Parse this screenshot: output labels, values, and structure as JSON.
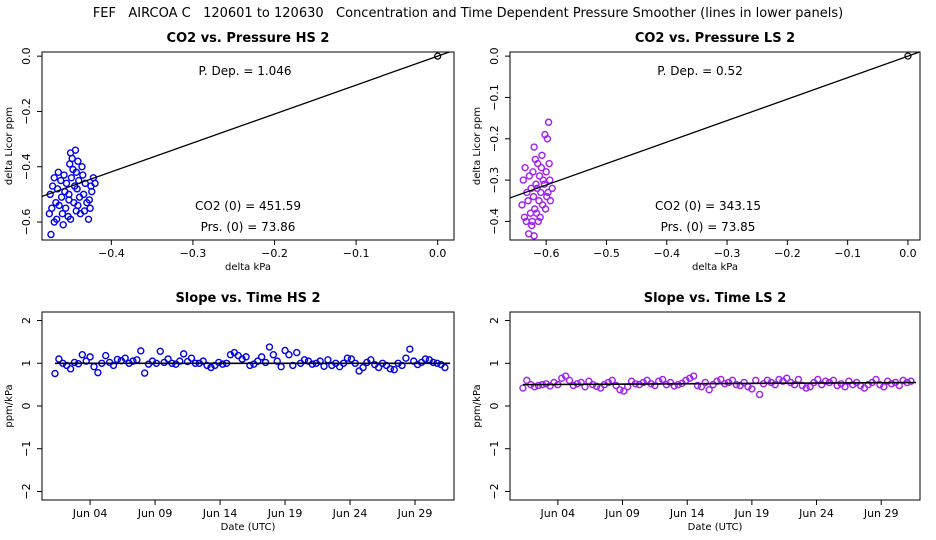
{
  "suptitle": "FEF   AIRCOA C   120601 to 120630   Concentration and Time Dependent Pressure Smoother (lines in lower panels)",
  "colors": {
    "hs": "#0000ee",
    "ls": "#a020f0",
    "line": "#000000"
  },
  "chart_data": [
    {
      "id": "p1",
      "type": "scatter",
      "title": "CO2 vs. Pressure HS 2",
      "xlabel": "delta kPa",
      "ylabel": "delta Licor ppm",
      "xlim": [
        -0.485,
        0.02
      ],
      "ylim": [
        -0.665,
        0.015
      ],
      "xticks": [
        -0.4,
        -0.3,
        -0.2,
        -0.1,
        0.0
      ],
      "xtick_labels": [
        "−0.4",
        "−0.3",
        "−0.2",
        "−0.1",
        "0.0"
      ],
      "yticks": [
        0.0,
        -0.2,
        -0.4,
        -0.6
      ],
      "ytick_labels": [
        "0.0",
        "−0.2",
        "−0.4",
        "−0.6"
      ],
      "annotations": {
        "pdep": "P. Dep. =  1.046",
        "co2_0": "CO2 (0) =  451.59",
        "prs_0": "Prs. (0) =  73.86"
      },
      "fit_line": {
        "x": [
          -0.485,
          0.02
        ],
        "y": [
          -0.5073,
          0.0209
        ]
      },
      "anchor_point": {
        "x": 0.0,
        "y": 0.0
      },
      "points": [
        [
          -0.47,
          -0.44
        ],
        [
          -0.472,
          -0.47
        ],
        [
          -0.475,
          -0.5
        ],
        [
          -0.468,
          -0.53
        ],
        [
          -0.473,
          -0.55
        ],
        [
          -0.476,
          -0.57
        ],
        [
          -0.47,
          -0.6
        ],
        [
          -0.474,
          -0.645
        ],
        [
          -0.465,
          -0.42
        ],
        [
          -0.462,
          -0.45
        ],
        [
          -0.466,
          -0.48
        ],
        [
          -0.461,
          -0.51
        ],
        [
          -0.464,
          -0.54
        ],
        [
          -0.46,
          -0.57
        ],
        [
          -0.467,
          -0.59
        ],
        [
          -0.458,
          -0.43
        ],
        [
          -0.455,
          -0.46
        ],
        [
          -0.457,
          -0.49
        ],
        [
          -0.452,
          -0.52
        ],
        [
          -0.456,
          -0.55
        ],
        [
          -0.453,
          -0.58
        ],
        [
          -0.459,
          -0.61
        ],
        [
          -0.45,
          -0.35
        ],
        [
          -0.448,
          -0.37
        ],
        [
          -0.451,
          -0.39
        ],
        [
          -0.447,
          -0.41
        ],
        [
          -0.449,
          -0.44
        ],
        [
          -0.445,
          -0.47
        ],
        [
          -0.452,
          -0.5
        ],
        [
          -0.446,
          -0.53
        ],
        [
          -0.443,
          -0.56
        ],
        [
          -0.45,
          -0.59
        ],
        [
          -0.444,
          -0.34
        ],
        [
          -0.441,
          -0.38
        ],
        [
          -0.443,
          -0.42
        ],
        [
          -0.44,
          -0.45
        ],
        [
          -0.442,
          -0.48
        ],
        [
          -0.439,
          -0.51
        ],
        [
          -0.441,
          -0.54
        ],
        [
          -0.438,
          -0.57
        ],
        [
          -0.435,
          -0.43
        ],
        [
          -0.432,
          -0.46
        ],
        [
          -0.434,
          -0.5
        ],
        [
          -0.43,
          -0.53
        ],
        [
          -0.433,
          -0.56
        ],
        [
          -0.428,
          -0.59
        ],
        [
          -0.436,
          -0.4
        ],
        [
          -0.425,
          -0.47
        ],
        [
          -0.422,
          -0.44
        ],
        [
          -0.427,
          -0.52
        ],
        [
          -0.424,
          -0.49
        ],
        [
          -0.42,
          -0.46
        ],
        [
          -0.426,
          -0.55
        ]
      ]
    },
    {
      "id": "p2",
      "type": "scatter",
      "title": "CO2 vs. Pressure LS 2",
      "xlabel": "delta kPa",
      "ylabel": "delta Licor ppm",
      "xlim": [
        -0.66,
        0.02
      ],
      "ylim": [
        -0.445,
        0.01
      ],
      "xticks": [
        -0.6,
        -0.5,
        -0.4,
        -0.3,
        -0.2,
        -0.1,
        0.0
      ],
      "xtick_labels": [
        "−0.6",
        "−0.5",
        "−0.4",
        "−0.3",
        "−0.2",
        "−0.1",
        "0.0"
      ],
      "yticks": [
        0.0,
        -0.1,
        -0.2,
        -0.3,
        -0.4
      ],
      "ytick_labels": [
        "0.0",
        "−0.1",
        "−0.2",
        "−0.3",
        "−0.4"
      ],
      "annotations": {
        "pdep": "P. Dep. =  0.52",
        "co2_0": "CO2 (0) =  343.15",
        "prs_0": "Prs. (0) =  73.85"
      },
      "fit_line": {
        "x": [
          -0.66,
          0.02
        ],
        "y": [
          -0.3432,
          0.0104
        ]
      },
      "anchor_point": {
        "x": 0.0,
        "y": 0.0
      },
      "points": [
        [
          -0.635,
          -0.27
        ],
        [
          -0.638,
          -0.3
        ],
        [
          -0.632,
          -0.33
        ],
        [
          -0.64,
          -0.36
        ],
        [
          -0.636,
          -0.39
        ],
        [
          -0.633,
          -0.4
        ],
        [
          -0.628,
          -0.29
        ],
        [
          -0.625,
          -0.32
        ],
        [
          -0.63,
          -0.35
        ],
        [
          -0.626,
          -0.38
        ],
        [
          -0.629,
          -0.43
        ],
        [
          -0.624,
          -0.41
        ],
        [
          -0.62,
          -0.22
        ],
        [
          -0.618,
          -0.25
        ],
        [
          -0.622,
          -0.28
        ],
        [
          -0.617,
          -0.31
        ],
        [
          -0.621,
          -0.34
        ],
        [
          -0.619,
          -0.37
        ],
        [
          -0.623,
          -0.4
        ],
        [
          -0.62,
          -0.435
        ],
        [
          -0.614,
          -0.26
        ],
        [
          -0.611,
          -0.29
        ],
        [
          -0.615,
          -0.32
        ],
        [
          -0.612,
          -0.35
        ],
        [
          -0.616,
          -0.38
        ],
        [
          -0.613,
          -0.4
        ],
        [
          -0.608,
          -0.27
        ],
        [
          -0.605,
          -0.3
        ],
        [
          -0.609,
          -0.33
        ],
        [
          -0.606,
          -0.36
        ],
        [
          -0.61,
          -0.39
        ],
        [
          -0.607,
          -0.24
        ],
        [
          -0.602,
          -0.19
        ],
        [
          -0.6,
          -0.28
        ],
        [
          -0.603,
          -0.31
        ],
        [
          -0.599,
          -0.34
        ],
        [
          -0.601,
          -0.37
        ],
        [
          -0.598,
          -0.2
        ],
        [
          -0.596,
          -0.16
        ],
        [
          -0.594,
          -0.3
        ],
        [
          -0.597,
          -0.33
        ],
        [
          -0.593,
          -0.35
        ],
        [
          -0.595,
          -0.26
        ],
        [
          -0.59,
          -0.32
        ]
      ]
    },
    {
      "id": "p3",
      "type": "scatter",
      "title": "Slope vs. Time HS 2",
      "xlabel": "Date (UTC)",
      "ylabel": "ppm/kPa",
      "xlim": [
        -0.7,
        31.0
      ],
      "ylim": [
        -2.2,
        2.2
      ],
      "xticks": [
        3,
        8,
        13,
        18,
        23,
        28
      ],
      "xtick_labels": [
        "Jun 04",
        "Jun 09",
        "Jun 14",
        "Jun 19",
        "Jun 24",
        "Jun 29"
      ],
      "yticks": [
        2,
        1,
        0,
        -1,
        -2
      ],
      "ytick_labels": [
        "2",
        "1",
        "0",
        "−1",
        "−2"
      ],
      "smoother": {
        "x": [
          0.3,
          30.7
        ],
        "y": [
          1.0,
          1.0
        ]
      },
      "points": [
        [
          0.3,
          0.76
        ],
        [
          0.6,
          1.1
        ],
        [
          0.9,
          1.0
        ],
        [
          1.2,
          0.95
        ],
        [
          1.5,
          0.87
        ],
        [
          1.8,
          1.02
        ],
        [
          2.1,
          0.99
        ],
        [
          2.4,
          1.2
        ],
        [
          2.7,
          1.05
        ],
        [
          3.0,
          1.15
        ],
        [
          3.3,
          0.92
        ],
        [
          3.6,
          0.78
        ],
        [
          3.9,
          1.0
        ],
        [
          4.2,
          1.18
        ],
        [
          4.5,
          1.02
        ],
        [
          4.8,
          0.95
        ],
        [
          5.1,
          1.09
        ],
        [
          5.4,
          1.06
        ],
        [
          5.7,
          1.12
        ],
        [
          6.0,
          1.0
        ],
        [
          6.3,
          1.05
        ],
        [
          6.6,
          1.08
        ],
        [
          6.9,
          1.29
        ],
        [
          7.2,
          0.77
        ],
        [
          7.5,
          0.98
        ],
        [
          7.8,
          1.05
        ],
        [
          8.1,
          1.0
        ],
        [
          8.4,
          1.28
        ],
        [
          8.7,
          1.02
        ],
        [
          9.0,
          1.1
        ],
        [
          9.3,
          1.0
        ],
        [
          9.6,
          0.98
        ],
        [
          9.9,
          1.05
        ],
        [
          10.2,
          1.22
        ],
        [
          10.5,
          1.04
        ],
        [
          10.8,
          1.12
        ],
        [
          11.1,
          1.0
        ],
        [
          11.4,
          1.0
        ],
        [
          11.7,
          1.05
        ],
        [
          12.0,
          0.95
        ],
        [
          12.3,
          0.9
        ],
        [
          12.6,
          0.95
        ],
        [
          12.9,
          1.02
        ],
        [
          13.2,
          0.98
        ],
        [
          13.5,
          1.0
        ],
        [
          13.8,
          1.2
        ],
        [
          14.1,
          1.25
        ],
        [
          14.4,
          1.18
        ],
        [
          14.7,
          1.1
        ],
        [
          15.0,
          1.15
        ],
        [
          15.3,
          0.95
        ],
        [
          15.6,
          0.98
        ],
        [
          15.9,
          1.05
        ],
        [
          16.2,
          1.15
        ],
        [
          16.5,
          1.02
        ],
        [
          16.8,
          1.38
        ],
        [
          17.1,
          1.2
        ],
        [
          17.4,
          1.05
        ],
        [
          17.7,
          0.92
        ],
        [
          18.0,
          1.3
        ],
        [
          18.3,
          1.2
        ],
        [
          18.6,
          0.95
        ],
        [
          18.9,
          1.25
        ],
        [
          19.2,
          1.0
        ],
        [
          19.5,
          1.08
        ],
        [
          19.8,
          1.05
        ],
        [
          20.1,
          0.98
        ],
        [
          20.4,
          1.0
        ],
        [
          20.7,
          1.05
        ],
        [
          21.0,
          0.93
        ],
        [
          21.3,
          1.08
        ],
        [
          21.6,
          0.95
        ],
        [
          21.9,
          1.0
        ],
        [
          22.2,
          0.92
        ],
        [
          22.5,
          1.0
        ],
        [
          22.8,
          1.12
        ],
        [
          23.1,
          1.1
        ],
        [
          23.4,
          1.0
        ],
        [
          23.7,
          0.82
        ],
        [
          24.0,
          0.9
        ],
        [
          24.3,
          1.02
        ],
        [
          24.6,
          1.08
        ],
        [
          24.9,
          0.97
        ],
        [
          25.2,
          0.9
        ],
        [
          25.5,
          1.0
        ],
        [
          25.8,
          0.95
        ],
        [
          26.1,
          0.87
        ],
        [
          26.4,
          0.85
        ],
        [
          26.7,
          1.0
        ],
        [
          27.0,
          0.95
        ],
        [
          27.3,
          1.12
        ],
        [
          27.6,
          1.33
        ],
        [
          27.9,
          1.05
        ],
        [
          28.2,
          0.97
        ],
        [
          28.5,
          1.02
        ],
        [
          28.8,
          1.1
        ],
        [
          29.1,
          1.08
        ],
        [
          29.4,
          1.02
        ],
        [
          29.7,
          1.0
        ],
        [
          30.0,
          0.97
        ],
        [
          30.3,
          0.9
        ]
      ]
    },
    {
      "id": "p4",
      "type": "scatter",
      "title": "Slope vs. Time LS 2",
      "xlabel": "Date (UTC)",
      "ylabel": "ppm/kPa",
      "xlim": [
        -0.7,
        31.0
      ],
      "ylim": [
        -2.2,
        2.2
      ],
      "xticks": [
        3,
        8,
        13,
        18,
        23,
        28
      ],
      "xtick_labels": [
        "Jun 04",
        "Jun 09",
        "Jun 14",
        "Jun 19",
        "Jun 24",
        "Jun 29"
      ],
      "yticks": [
        2,
        1,
        0,
        -1,
        -2
      ],
      "ytick_labels": [
        "2",
        "1",
        "0",
        "−1",
        "−2"
      ],
      "smoother": {
        "x": [
          0.3,
          30.7
        ],
        "y": [
          0.5,
          0.55
        ]
      },
      "points": [
        [
          0.3,
          0.42
        ],
        [
          0.6,
          0.6
        ],
        [
          0.9,
          0.5
        ],
        [
          1.2,
          0.45
        ],
        [
          1.5,
          0.48
        ],
        [
          1.8,
          0.5
        ],
        [
          2.1,
          0.52
        ],
        [
          2.4,
          0.47
        ],
        [
          2.7,
          0.55
        ],
        [
          3.0,
          0.5
        ],
        [
          3.3,
          0.65
        ],
        [
          3.6,
          0.7
        ],
        [
          3.9,
          0.6
        ],
        [
          4.2,
          0.48
        ],
        [
          4.5,
          0.52
        ],
        [
          4.8,
          0.55
        ],
        [
          5.1,
          0.45
        ],
        [
          5.4,
          0.58
        ],
        [
          5.7,
          0.5
        ],
        [
          6.0,
          0.46
        ],
        [
          6.3,
          0.42
        ],
        [
          6.6,
          0.5
        ],
        [
          6.9,
          0.55
        ],
        [
          7.2,
          0.6
        ],
        [
          7.5,
          0.48
        ],
        [
          7.8,
          0.38
        ],
        [
          8.1,
          0.35
        ],
        [
          8.4,
          0.45
        ],
        [
          8.7,
          0.58
        ],
        [
          9.0,
          0.52
        ],
        [
          9.3,
          0.5
        ],
        [
          9.6,
          0.55
        ],
        [
          9.9,
          0.6
        ],
        [
          10.2,
          0.52
        ],
        [
          10.5,
          0.48
        ],
        [
          10.8,
          0.58
        ],
        [
          11.1,
          0.62
        ],
        [
          11.4,
          0.5
        ],
        [
          11.7,
          0.55
        ],
        [
          12.0,
          0.47
        ],
        [
          12.3,
          0.5
        ],
        [
          12.6,
          0.53
        ],
        [
          12.9,
          0.6
        ],
        [
          13.2,
          0.65
        ],
        [
          13.5,
          0.7
        ],
        [
          13.8,
          0.48
        ],
        [
          14.1,
          0.45
        ],
        [
          14.4,
          0.55
        ],
        [
          14.7,
          0.38
        ],
        [
          15.0,
          0.5
        ],
        [
          15.3,
          0.58
        ],
        [
          15.6,
          0.62
        ],
        [
          15.9,
          0.52
        ],
        [
          16.2,
          0.55
        ],
        [
          16.5,
          0.6
        ],
        [
          16.8,
          0.5
        ],
        [
          17.1,
          0.48
        ],
        [
          17.4,
          0.55
        ],
        [
          17.7,
          0.45
        ],
        [
          18.0,
          0.4
        ],
        [
          18.3,
          0.6
        ],
        [
          18.6,
          0.27
        ],
        [
          18.9,
          0.52
        ],
        [
          19.2,
          0.6
        ],
        [
          19.5,
          0.55
        ],
        [
          19.8,
          0.5
        ],
        [
          20.1,
          0.62
        ],
        [
          20.4,
          0.58
        ],
        [
          20.7,
          0.65
        ],
        [
          21.0,
          0.55
        ],
        [
          21.3,
          0.5
        ],
        [
          21.6,
          0.62
        ],
        [
          21.9,
          0.48
        ],
        [
          22.2,
          0.42
        ],
        [
          22.5,
          0.45
        ],
        [
          22.8,
          0.55
        ],
        [
          23.1,
          0.62
        ],
        [
          23.4,
          0.5
        ],
        [
          23.7,
          0.58
        ],
        [
          24.0,
          0.55
        ],
        [
          24.3,
          0.6
        ],
        [
          24.6,
          0.48
        ],
        [
          24.9,
          0.52
        ],
        [
          25.2,
          0.45
        ],
        [
          25.5,
          0.58
        ],
        [
          25.8,
          0.5
        ],
        [
          26.1,
          0.55
        ],
        [
          26.4,
          0.48
        ],
        [
          26.7,
          0.42
        ],
        [
          27.0,
          0.5
        ],
        [
          27.3,
          0.55
        ],
        [
          27.6,
          0.62
        ],
        [
          27.9,
          0.5
        ],
        [
          28.2,
          0.45
        ],
        [
          28.5,
          0.58
        ],
        [
          28.8,
          0.52
        ],
        [
          29.1,
          0.55
        ],
        [
          29.4,
          0.48
        ],
        [
          29.7,
          0.6
        ],
        [
          30.0,
          0.55
        ],
        [
          30.3,
          0.58
        ]
      ]
    }
  ]
}
